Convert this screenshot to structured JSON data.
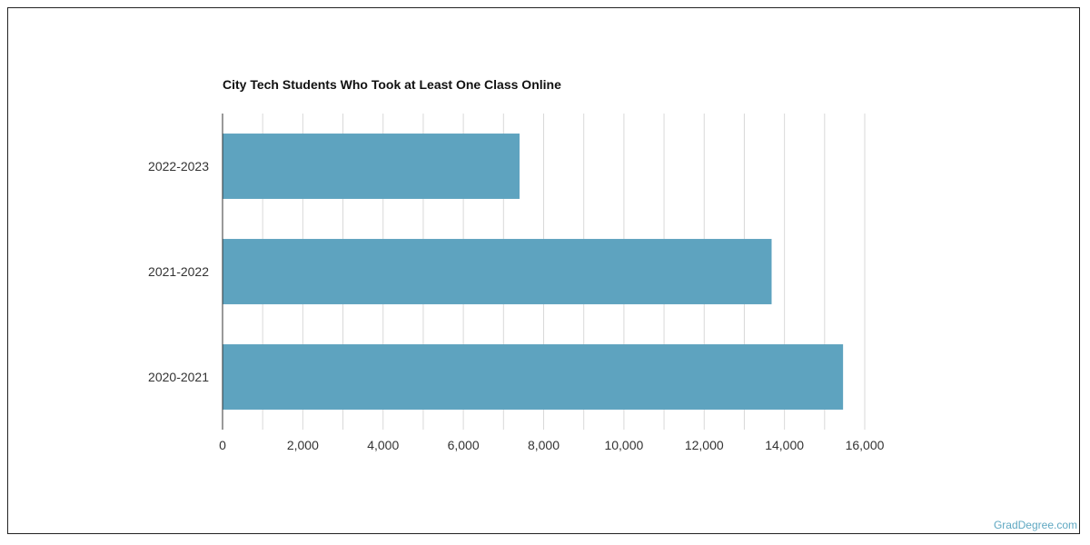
{
  "chart_data": {
    "type": "bar",
    "orientation": "horizontal",
    "title": "City Tech Students Who Took at Least One Class Online",
    "categories": [
      "2022-2023",
      "2021-2022",
      "2020-2021"
    ],
    "values": [
      7400,
      13680,
      15460
    ],
    "xlim": [
      0,
      16000
    ],
    "xticks": [
      0,
      2000,
      4000,
      6000,
      8000,
      10000,
      12000,
      14000,
      16000
    ],
    "xtick_labels": [
      "0",
      "2,000",
      "4,000",
      "6,000",
      "8,000",
      "10,000",
      "12,000",
      "14,000",
      "16,000"
    ],
    "xlabel": "",
    "ylabel": "",
    "grid": true,
    "bar_color": "#5ea3bf",
    "grid_color": "#d9d9d9"
  },
  "credit": "GradDegree.com"
}
